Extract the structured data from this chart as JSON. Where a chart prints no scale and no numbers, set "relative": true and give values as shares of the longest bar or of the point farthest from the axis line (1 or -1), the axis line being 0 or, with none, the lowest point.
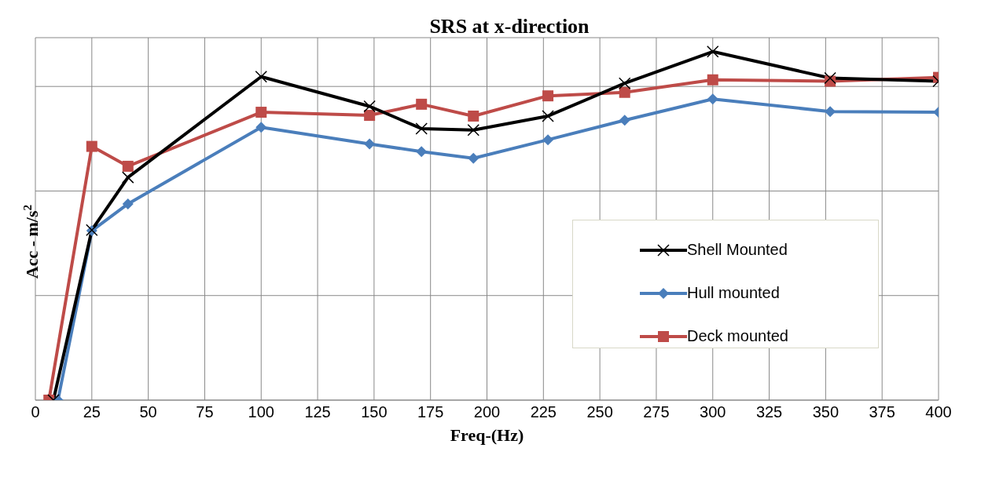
{
  "chart_data": {
    "type": "line",
    "title": "SRS  at x-direction",
    "xlabel": "Freq-(Hz)",
    "ylabel": "Acc - m/s$^{2}$",
    "relative": true,
    "xlim": [
      0,
      400
    ],
    "xticks": [
      0,
      25,
      50,
      75,
      100,
      125,
      150,
      175,
      200,
      225,
      250,
      275,
      300,
      325,
      350,
      375,
      400
    ],
    "grid": true,
    "legend": "right",
    "series": [
      {
        "name": "Shell Mounted",
        "color": "#000000",
        "marker": "cross",
        "x": [
          8,
          25,
          41,
          100,
          148,
          171,
          194,
          227,
          261,
          300,
          352,
          400
        ],
        "values": [
          0,
          0.488,
          0.639,
          0.928,
          0.843,
          0.779,
          0.775,
          0.815,
          0.909,
          1.0,
          0.924,
          0.915
        ]
      },
      {
        "name": "Hull mounted",
        "color": "#4a7ebb",
        "marker": "diamond",
        "x": [
          10,
          25,
          41,
          100,
          148,
          171,
          194,
          227,
          261,
          300,
          352,
          400
        ],
        "values": [
          0,
          0.486,
          0.563,
          0.783,
          0.735,
          0.713,
          0.694,
          0.747,
          0.803,
          0.864,
          0.828,
          0.826
        ]
      },
      {
        "name": "Deck mounted",
        "color": "#be4b48",
        "marker": "square",
        "x": [
          6,
          25,
          41,
          100,
          148,
          171,
          194,
          227,
          261,
          300,
          352,
          400
        ],
        "values": [
          0,
          0.728,
          0.671,
          0.826,
          0.817,
          0.849,
          0.815,
          0.873,
          0.883,
          0.919,
          0.915,
          0.926
        ]
      }
    ]
  }
}
